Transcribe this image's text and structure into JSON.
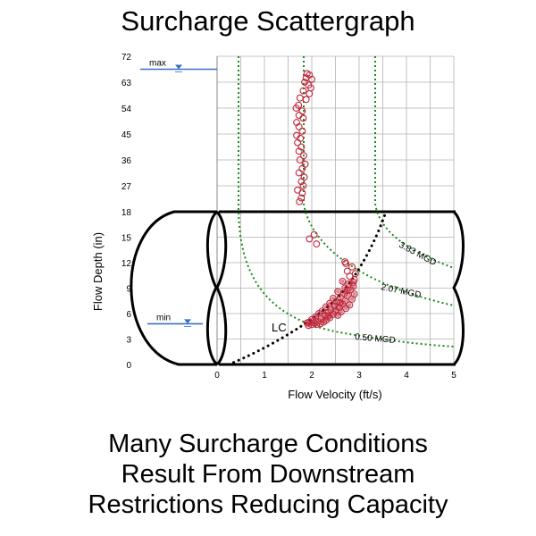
{
  "title": "Surcharge Scattergraph",
  "caption": {
    "line1": "Many Surcharge Conditions",
    "line2": "Result From Downstream",
    "line3": "Restrictions Reducing Capacity"
  },
  "chart_data": {
    "type": "scatter",
    "xlabel": "Flow Velocity (ft/s)",
    "ylabel": "Flow Depth (in)",
    "xlim": [
      0,
      5
    ],
    "xticks": [
      "0",
      "1",
      "2",
      "3",
      "4",
      "5"
    ],
    "lower_ylim": [
      0,
      18
    ],
    "lower_yticks": [
      "0",
      "3",
      "6",
      "9",
      "12",
      "15",
      "18"
    ],
    "upper_ylim": [
      18,
      72
    ],
    "upper_yticks": [
      "27",
      "36",
      "45",
      "54",
      "63",
      "72"
    ],
    "level_markers": [
      {
        "label": "max",
        "depth": 67.5
      },
      {
        "label": "min",
        "depth": 4.8
      }
    ],
    "curve_labels": [
      "3.83 MGD",
      "2.07 MGD",
      "0.50 MGD",
      "LC"
    ],
    "colors": {
      "points": "#c0283c",
      "iso_q_curves": "#1a8a1a",
      "lc_curve": "#000000",
      "level_marker": "#3a6fc4",
      "pipe_outline": "#000000",
      "grid": "#b0b0b0"
    },
    "series": [
      {
        "values": [
          [
            1.9,
            66.0
          ],
          [
            1.95,
            65.5
          ],
          [
            1.88,
            64.5
          ],
          [
            2.0,
            64.0
          ],
          [
            1.85,
            63.0
          ],
          [
            1.93,
            62.0
          ],
          [
            1.98,
            61.0
          ],
          [
            1.82,
            60.0
          ],
          [
            1.95,
            59.0
          ],
          [
            1.75,
            57.5
          ],
          [
            1.88,
            57.0
          ],
          [
            1.72,
            55.0
          ],
          [
            1.67,
            54.0
          ],
          [
            1.8,
            53.0
          ],
          [
            1.73,
            51.5
          ],
          [
            1.82,
            50.5
          ],
          [
            1.68,
            49.0
          ],
          [
            1.73,
            47.5
          ],
          [
            1.8,
            46.0
          ],
          [
            1.68,
            44.5
          ],
          [
            1.76,
            43.5
          ],
          [
            1.7,
            42.0
          ],
          [
            1.78,
            40.5
          ],
          [
            1.73,
            39.0
          ],
          [
            1.83,
            37.5
          ],
          [
            1.75,
            36.0
          ],
          [
            1.86,
            34.5
          ],
          [
            1.8,
            33.0
          ],
          [
            1.73,
            31.5
          ],
          [
            1.84,
            30.0
          ],
          [
            1.78,
            28.5
          ],
          [
            1.82,
            27.0
          ],
          [
            1.7,
            25.5
          ],
          [
            1.8,
            24.5
          ],
          [
            1.78,
            22.8
          ],
          [
            1.74,
            21.5
          ],
          [
            2.05,
            15.3
          ],
          [
            1.95,
            14.8
          ],
          [
            2.1,
            14.2
          ],
          [
            2.72,
            11.9
          ],
          [
            2.85,
            11.5
          ],
          [
            2.75,
            11.0
          ],
          [
            2.8,
            10.4
          ],
          [
            2.9,
            10.0
          ],
          [
            2.65,
            9.8
          ],
          [
            2.78,
            9.5
          ],
          [
            2.88,
            9.2
          ],
          [
            2.7,
            9.0
          ],
          [
            2.82,
            8.8
          ],
          [
            2.55,
            8.6
          ],
          [
            2.68,
            8.4
          ],
          [
            2.9,
            8.3
          ],
          [
            2.75,
            8.1
          ],
          [
            2.6,
            7.9
          ],
          [
            2.45,
            7.8
          ],
          [
            2.85,
            7.7
          ],
          [
            2.7,
            7.5
          ],
          [
            2.52,
            7.4
          ],
          [
            2.38,
            7.2
          ],
          [
            2.65,
            7.1
          ],
          [
            2.8,
            7.0
          ],
          [
            2.48,
            6.9
          ],
          [
            2.3,
            6.8
          ],
          [
            2.58,
            6.7
          ],
          [
            2.72,
            6.6
          ],
          [
            2.4,
            6.5
          ],
          [
            2.22,
            6.3
          ],
          [
            2.5,
            6.3
          ],
          [
            2.62,
            6.2
          ],
          [
            2.35,
            6.1
          ],
          [
            2.15,
            6.0
          ],
          [
            2.45,
            5.9
          ],
          [
            2.28,
            5.8
          ],
          [
            2.55,
            5.8
          ],
          [
            2.08,
            5.6
          ],
          [
            2.38,
            5.5
          ],
          [
            2.2,
            5.4
          ],
          [
            2.0,
            5.3
          ],
          [
            2.3,
            5.2
          ],
          [
            2.12,
            5.1
          ],
          [
            1.95,
            5.0
          ],
          [
            2.25,
            5.0
          ],
          [
            2.05,
            4.9
          ],
          [
            1.9,
            4.9
          ],
          [
            2.18,
            4.8
          ],
          [
            2.0,
            4.7
          ],
          [
            2.1,
            4.7
          ],
          [
            1.93,
            4.6
          ],
          [
            2.35,
            5.7
          ],
          [
            2.6,
            7.3
          ],
          [
            2.75,
            8.7
          ],
          [
            2.88,
            9.7
          ],
          [
            2.92,
            10.7
          ],
          [
            2.7,
            12.1
          ]
        ]
      }
    ]
  }
}
